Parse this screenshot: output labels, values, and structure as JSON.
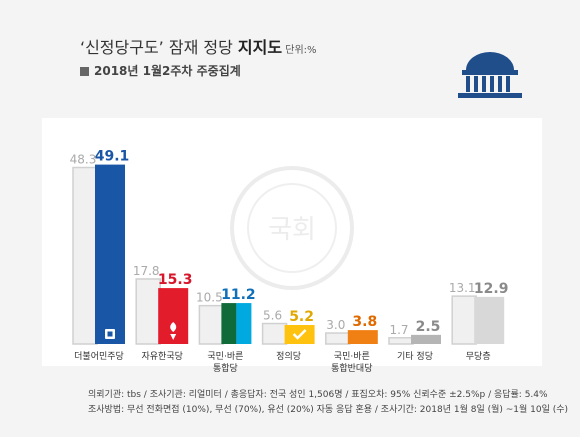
{
  "header": {
    "title_main": "‘신정당구도’ 잠재 정당 ",
    "title_strong": "지지도",
    "title_unit": " 단위:%",
    "subtitle": "2018년 1월2주차 주중집계",
    "watermark": "국회"
  },
  "colors": {
    "previous": "#f0f0f0",
    "previous_outline": "#d0d0d0",
    "previous_label": "#aaaaaa",
    "logo": "#1f4e8a"
  },
  "chart_data": {
    "type": "bar",
    "ylim": [
      0,
      52
    ],
    "series": [
      {
        "values": [
          48.3,
          17.8,
          10.5,
          5.6,
          3.0,
          1.7,
          13.1
        ]
      },
      {
        "values": [
          49.1,
          15.3,
          11.2,
          5.2,
          3.8,
          2.5,
          12.9
        ]
      }
    ],
    "categories": [
      {
        "label_lines": [
          "더불어민주당"
        ],
        "color": "#1a56a6",
        "label_color": "#1a56a6",
        "icon": "minjoo-logo-icon"
      },
      {
        "label_lines": [
          "자유한국당"
        ],
        "color": "#e31c2b",
        "label_color": "#d6162a",
        "icon": "torch-icon"
      },
      {
        "label_lines": [
          "국민·바른",
          "통합당"
        ],
        "color": "#00a99d",
        "label_color": "#0f6fb8",
        "color_left": "#0f6b3a",
        "color_right": "#00a9e0",
        "icon": ""
      },
      {
        "label_lines": [
          "정의당"
        ],
        "color": "#ffc20e",
        "label_color": "#e0a800",
        "icon": "check-icon"
      },
      {
        "label_lines": [
          "국민·바른",
          "통합반대당"
        ],
        "color": "#f07f14",
        "label_color": "#e06a00",
        "icon": ""
      },
      {
        "label_lines": [
          "기타 정당"
        ],
        "color": "#b5b5b5",
        "label_color": "#8a8a8a",
        "icon": ""
      },
      {
        "label_lines": [
          "무당층"
        ],
        "color": "#d8d8d8",
        "label_color": "#8a8a8a",
        "icon": ""
      }
    ]
  },
  "footer": {
    "line1": "의뢰기관: tbs / 조사기관: 리얼미터 / 총응답자: 전국 성인 1,506명 / 표집오차: 95% 신뢰수준 ±2.5%p / 응답률: 5.4%",
    "line2": "조사방법: 무선 전화면접 (10%), 무선 (70%), 유선 (20%) 자동 응답 혼용 / 조사기간: 2018년 1월 8일 (월) ~1월 10일 (수)"
  }
}
